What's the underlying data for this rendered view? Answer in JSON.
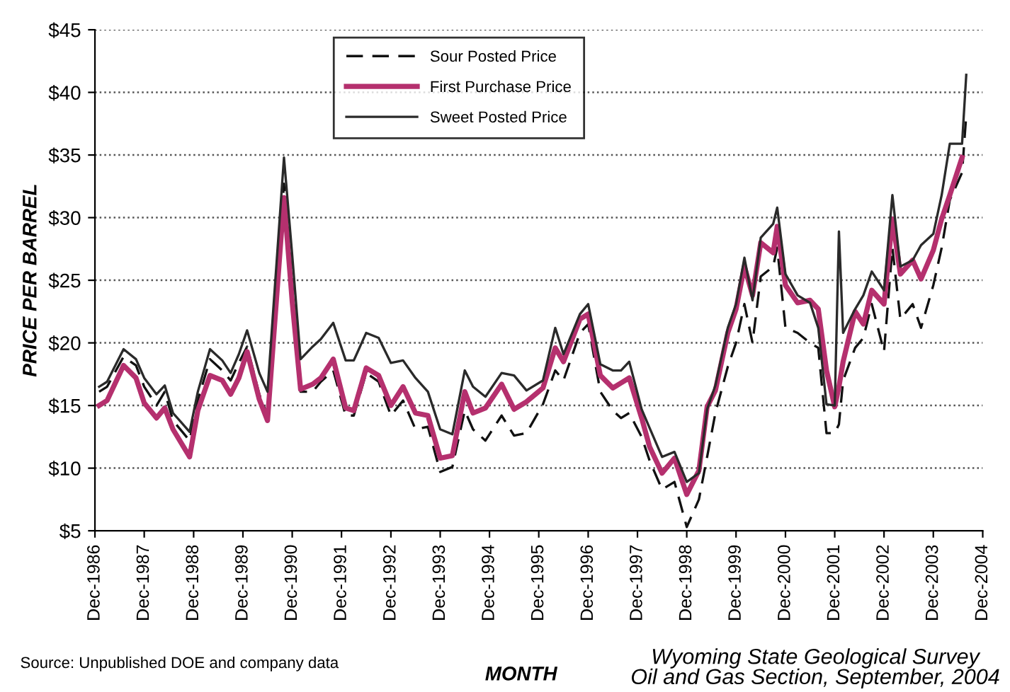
{
  "chart_data": {
    "type": "line",
    "xlabel": "MONTH",
    "ylabel": "PRICE PER BARREL",
    "x": [
      "1987-01",
      "1987-03",
      "1987-07",
      "1987-10",
      "1987-12",
      "1988-03",
      "1988-05",
      "1988-07",
      "1988-11",
      "1989-01",
      "1989-04",
      "1989-07",
      "1989-09",
      "1989-11",
      "1990-01",
      "1990-04",
      "1990-06",
      "1990-10",
      "1990-12",
      "1991-02",
      "1991-05",
      "1991-07",
      "1991-10",
      "1992-01",
      "1992-03",
      "1992-06",
      "1992-09",
      "1992-12",
      "1993-03",
      "1993-06",
      "1993-09",
      "1993-12",
      "1994-03",
      "1994-06",
      "1994-08",
      "1994-11",
      "1995-03",
      "1995-06",
      "1995-09",
      "1996-01",
      "1996-04",
      "1996-06",
      "1996-10",
      "1996-12",
      "1997-03",
      "1997-06",
      "1997-08",
      "1997-10",
      "1998-01",
      "1998-03",
      "1998-06",
      "1998-09",
      "1998-12",
      "1999-03",
      "1999-05",
      "1999-07",
      "1999-10",
      "1999-12",
      "2000-02",
      "2000-04",
      "2000-06",
      "2000-09",
      "2000-10",
      "2000-12",
      "2001-03",
      "2001-06",
      "2001-08",
      "2001-10",
      "2001-12",
      "2002-01",
      "2002-02",
      "2002-05",
      "2002-07",
      "2002-09",
      "2002-12",
      "2003-02",
      "2003-04",
      "2003-07",
      "2003-09",
      "2003-12",
      "2004-02",
      "2004-04",
      "2004-07",
      "2004-08"
    ],
    "series": [
      {
        "name": "Sour Posted Price",
        "color": "#111111",
        "line_style": "dashed",
        "values": [
          16.1,
          16.5,
          18.9,
          18.2,
          16.5,
          15.0,
          16.1,
          13.8,
          12.2,
          15.4,
          18.7,
          17.8,
          17.0,
          18.4,
          19.7,
          15.9,
          14.2,
          32.7,
          24.8,
          16.1,
          16.1,
          16.9,
          17.8,
          14.2,
          14.2,
          17.6,
          16.9,
          14.2,
          15.4,
          13.1,
          13.3,
          9.7,
          10.1,
          14.6,
          13.1,
          12.2,
          14.2,
          12.6,
          12.8,
          15.1,
          17.8,
          17.0,
          20.8,
          21.5,
          16.1,
          14.6,
          14.0,
          14.4,
          12.5,
          10.6,
          8.3,
          8.9,
          5.3,
          7.5,
          10.9,
          14.4,
          18.1,
          20.0,
          23.1,
          20.0,
          25.3,
          26.1,
          27.6,
          21.2,
          20.8,
          20.0,
          19.6,
          12.8,
          12.8,
          13.5,
          17.0,
          19.6,
          20.4,
          23.1,
          19.3,
          27.6,
          21.9,
          23.1,
          21.2,
          24.6,
          27.6,
          31.4,
          33.6,
          38.2
        ]
      },
      {
        "name": "First Purchase Price",
        "color": "#b5306e",
        "line_style": "solid",
        "values": [
          15.0,
          15.4,
          18.2,
          17.2,
          15.2,
          14.0,
          14.8,
          13.1,
          10.9,
          14.6,
          17.4,
          17.0,
          15.9,
          17.2,
          19.3,
          15.5,
          13.8,
          31.6,
          23.3,
          16.3,
          16.7,
          17.2,
          18.7,
          14.8,
          14.6,
          18.0,
          17.4,
          15.0,
          16.5,
          14.4,
          14.2,
          10.8,
          11.0,
          16.1,
          14.4,
          14.8,
          16.7,
          14.7,
          15.3,
          16.4,
          19.6,
          18.5,
          21.9,
          22.3,
          17.4,
          16.4,
          16.8,
          17.2,
          14.0,
          11.7,
          9.6,
          10.8,
          7.9,
          9.8,
          14.9,
          16.2,
          20.8,
          22.7,
          26.1,
          23.8,
          28.0,
          27.2,
          29.3,
          24.6,
          23.2,
          23.4,
          22.7,
          17.8,
          14.9,
          16.5,
          18.5,
          22.5,
          21.5,
          24.2,
          23.1,
          29.9,
          25.5,
          26.6,
          25.1,
          27.4,
          29.9,
          31.8,
          34.8,
          null
        ]
      },
      {
        "name": "Sweet Posted Price",
        "color": "#2a2a2a",
        "line_style": "solid",
        "values": [
          16.5,
          16.9,
          19.5,
          18.7,
          17.2,
          15.9,
          16.6,
          14.4,
          12.9,
          16.1,
          19.5,
          18.6,
          17.6,
          19.1,
          21.0,
          17.6,
          16.1,
          34.8,
          27.0,
          18.7,
          19.7,
          20.3,
          21.6,
          18.6,
          18.6,
          20.8,
          20.4,
          18.4,
          18.6,
          17.2,
          16.1,
          13.1,
          12.7,
          17.8,
          16.5,
          15.7,
          17.6,
          17.4,
          16.2,
          17.0,
          21.2,
          19.1,
          22.3,
          23.1,
          18.3,
          17.8,
          17.8,
          18.5,
          14.7,
          13.2,
          10.9,
          11.3,
          8.9,
          9.6,
          14.7,
          16.6,
          21.2,
          23.1,
          26.8,
          23.4,
          28.4,
          29.5,
          30.8,
          25.5,
          23.8,
          23.2,
          21.2,
          15.1,
          15.0,
          28.9,
          20.8,
          22.7,
          23.8,
          25.7,
          24.2,
          31.8,
          26.1,
          26.6,
          27.8,
          28.7,
          31.8,
          35.9,
          35.9,
          41.4
        ]
      }
    ],
    "xlim": [
      "1986-12",
      "2004-12"
    ],
    "xticks": [
      {
        "value": "1986-12",
        "label": "Dec-1986"
      },
      {
        "value": "1987-12",
        "label": "Dec-1987"
      },
      {
        "value": "1988-12",
        "label": "Dec-1988"
      },
      {
        "value": "1989-12",
        "label": "Dec-1989"
      },
      {
        "value": "1990-12",
        "label": "Dec-1990"
      },
      {
        "value": "1991-12",
        "label": "Dec-1991"
      },
      {
        "value": "1992-12",
        "label": "Dec-1992"
      },
      {
        "value": "1993-12",
        "label": "Dec-1993"
      },
      {
        "value": "1994-12",
        "label": "Dec-1994"
      },
      {
        "value": "1995-12",
        "label": "Dec-1995"
      },
      {
        "value": "1996-12",
        "label": "Dec-1996"
      },
      {
        "value": "1997-12",
        "label": "Dec-1997"
      },
      {
        "value": "1998-12",
        "label": "Dec-1998"
      },
      {
        "value": "1999-12",
        "label": "Dec-1999"
      },
      {
        "value": "2000-12",
        "label": "Dec-2000"
      },
      {
        "value": "2001-12",
        "label": "Dec-2001"
      },
      {
        "value": "2002-12",
        "label": "Dec-2002"
      },
      {
        "value": "2003-12",
        "label": "Dec-2003"
      },
      {
        "value": "2004-12",
        "label": "Dec-2004"
      }
    ],
    "ylim": [
      5,
      45
    ],
    "yticks": [
      {
        "value": 5,
        "label": "$5"
      },
      {
        "value": 10,
        "label": "$10"
      },
      {
        "value": 15,
        "label": "$15"
      },
      {
        "value": 20,
        "label": "$20"
      },
      {
        "value": 25,
        "label": "$25"
      },
      {
        "value": 30,
        "label": "$30"
      },
      {
        "value": 35,
        "label": "$35"
      },
      {
        "value": 40,
        "label": "$40"
      },
      {
        "value": 45,
        "label": "$45"
      }
    ],
    "grid": "y",
    "legend": "top",
    "marker": "none",
    "annotations": [
      "Source: Unpublished DOE and company data",
      "Wyoming State Geological Survey\nOil and Gas Section, September, 2004"
    ]
  }
}
